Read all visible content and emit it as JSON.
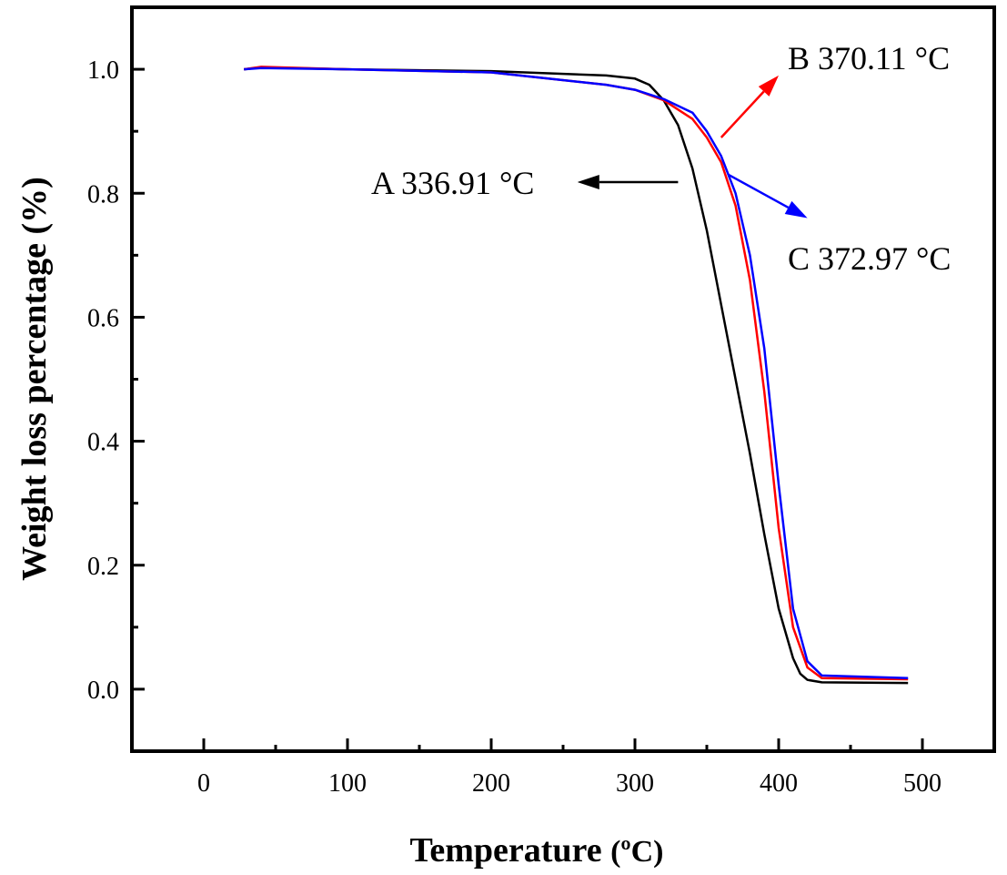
{
  "chart_data": {
    "type": "line",
    "title": "",
    "xlabel": "Temperature",
    "xlabel_unit": "(ºC)",
    "ylabel": "Weight loss percentage (%)",
    "xlim": [
      -50,
      550
    ],
    "ylim": [
      -0.1,
      1.1
    ],
    "x_ticks": [
      0,
      100,
      200,
      300,
      400,
      500
    ],
    "x_tick_labels": [
      "0",
      "100",
      "200",
      "300",
      "400",
      "500"
    ],
    "y_ticks": [
      0.0,
      0.2,
      0.4,
      0.6,
      0.8,
      1.0
    ],
    "y_tick_labels": [
      "0.0",
      "0.2",
      "0.4",
      "0.6",
      "0.8",
      "1.0"
    ],
    "grid": false,
    "series": [
      {
        "name": "A",
        "color": "#000000",
        "x": [
          28,
          40,
          100,
          200,
          280,
          300,
          310,
          320,
          330,
          340,
          350,
          360,
          370,
          380,
          390,
          400,
          410,
          415,
          420,
          430,
          490
        ],
        "y": [
          1.0,
          1.003,
          1.0,
          0.997,
          0.99,
          0.985,
          0.975,
          0.95,
          0.91,
          0.84,
          0.74,
          0.62,
          0.5,
          0.38,
          0.25,
          0.13,
          0.05,
          0.025,
          0.015,
          0.011,
          0.01
        ]
      },
      {
        "name": "B",
        "color": "#ff0000",
        "x": [
          28,
          40,
          100,
          200,
          280,
          300,
          320,
          340,
          350,
          360,
          370,
          380,
          390,
          395,
          400,
          410,
          420,
          430,
          490
        ],
        "y": [
          1.0,
          1.004,
          1.0,
          0.995,
          0.975,
          0.967,
          0.95,
          0.92,
          0.89,
          0.85,
          0.78,
          0.66,
          0.48,
          0.37,
          0.26,
          0.1,
          0.035,
          0.018,
          0.016
        ]
      },
      {
        "name": "C",
        "color": "#0000ff",
        "x": [
          28,
          40,
          100,
          200,
          280,
          300,
          320,
          340,
          350,
          360,
          370,
          380,
          390,
          400,
          405,
          410,
          420,
          430,
          490
        ],
        "y": [
          1.0,
          1.002,
          1.0,
          0.995,
          0.975,
          0.967,
          0.952,
          0.93,
          0.9,
          0.86,
          0.8,
          0.7,
          0.55,
          0.33,
          0.23,
          0.13,
          0.045,
          0.022,
          0.018
        ]
      }
    ],
    "annotations": [
      {
        "id": "a",
        "text": "A 336.91 °C",
        "color": "#000000",
        "arrow_from": [
          330,
          0.818
        ],
        "arrow_to": [
          260,
          0.818
        ]
      },
      {
        "id": "b",
        "text": "B 370.11 °C",
        "color": "#ff0000",
        "arrow_from": [
          360,
          0.89
        ],
        "arrow_to": [
          400,
          0.99
        ]
      },
      {
        "id": "c",
        "text": "C 372.97 °C",
        "color": "#0000ff",
        "arrow_from": [
          365,
          0.83
        ],
        "arrow_to": [
          420,
          0.76
        ]
      }
    ]
  }
}
